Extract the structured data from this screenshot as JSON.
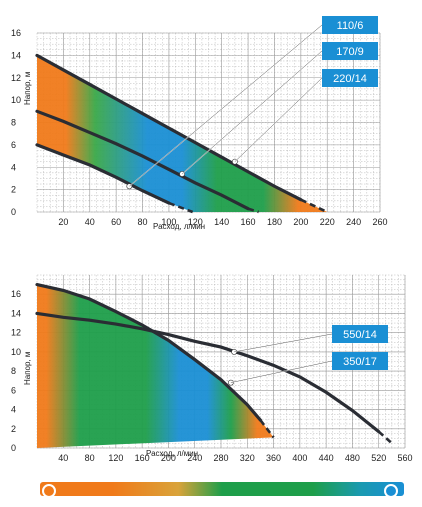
{
  "chart_data": [
    {
      "type": "line",
      "xlabel": "Расход, л/мин",
      "ylabel": "Напор, м",
      "xlim": [
        0,
        260
      ],
      "ylim": [
        0,
        16
      ],
      "x_ticks": [
        "20",
        "40",
        "60",
        "80",
        "100",
        "120",
        "140",
        "160",
        "180",
        "200",
        "220",
        "240",
        "260"
      ],
      "y_ticks": [
        "0",
        "2",
        "4",
        "6",
        "8",
        "10",
        "12",
        "14",
        "16"
      ],
      "grid": true,
      "legend_placement": "top-right callouts",
      "series": [
        {
          "name": "110/6",
          "points": [
            [
              0,
              6.0
            ],
            [
              20,
              5.1
            ],
            [
              40,
              4.2
            ],
            [
              60,
              3.1
            ],
            [
              80,
              1.9
            ],
            [
              100,
              0.8
            ],
            [
              118,
              0.0
            ]
          ]
        },
        {
          "name": "170/9",
          "points": [
            [
              0,
              9.0
            ],
            [
              20,
              8.1
            ],
            [
              40,
              7.1
            ],
            [
              60,
              6.1
            ],
            [
              80,
              5.0
            ],
            [
              100,
              3.8
            ],
            [
              120,
              2.6
            ],
            [
              140,
              1.5
            ],
            [
              160,
              0.3
            ],
            [
              168,
              0.0
            ]
          ]
        },
        {
          "name": "220/14",
          "points": [
            [
              0,
              14.0
            ],
            [
              20,
              12.7
            ],
            [
              40,
              11.4
            ],
            [
              60,
              10.1
            ],
            [
              80,
              8.8
            ],
            [
              100,
              7.5
            ],
            [
              120,
              6.2
            ],
            [
              140,
              4.9
            ],
            [
              160,
              3.6
            ],
            [
              180,
              2.3
            ],
            [
              200,
              1.1
            ],
            [
              220,
              0.0
            ]
          ]
        }
      ],
      "markers": [
        {
          "series": "110/6",
          "x": 70,
          "y": 2.3
        },
        {
          "series": "170/9",
          "x": 110,
          "y": 3.4
        },
        {
          "series": "220/14",
          "x": 150,
          "y": 4.5
        }
      ]
    },
    {
      "type": "line",
      "xlabel": "Расход, л/мин",
      "ylabel": "Напор, м",
      "xlim": [
        0,
        560
      ],
      "ylim": [
        0,
        18
      ],
      "x_ticks": [
        "40",
        "80",
        "120",
        "160",
        "200",
        "240",
        "280",
        "320",
        "360",
        "400",
        "440",
        "480",
        "520",
        "560"
      ],
      "y_ticks": [
        "0",
        "2",
        "4",
        "6",
        "8",
        "10",
        "12",
        "14",
        "16"
      ],
      "grid": true,
      "legend_placement": "right callouts",
      "series": [
        {
          "name": "350/17",
          "points": [
            [
              0,
              17.0
            ],
            [
              40,
              16.4
            ],
            [
              80,
              15.5
            ],
            [
              120,
              14.2
            ],
            [
              160,
              12.8
            ],
            [
              200,
              11.2
            ],
            [
              240,
              9.2
            ],
            [
              280,
              7.1
            ],
            [
              320,
              4.5
            ],
            [
              340,
              2.9
            ],
            [
              360,
              1.1
            ]
          ]
        },
        {
          "name": "550/14",
          "points": [
            [
              0,
              14.0
            ],
            [
              40,
              13.6
            ],
            [
              80,
              13.3
            ],
            [
              120,
              12.9
            ],
            [
              160,
              12.4
            ],
            [
              200,
              11.8
            ],
            [
              240,
              11.1
            ],
            [
              280,
              10.5
            ],
            [
              320,
              9.6
            ],
            [
              360,
              8.6
            ],
            [
              400,
              7.4
            ],
            [
              440,
              5.8
            ],
            [
              480,
              3.9
            ],
            [
              520,
              1.7
            ],
            [
              540,
              0.5
            ]
          ]
        }
      ],
      "markers": [
        {
          "series": "550/14",
          "x": 300,
          "y": 10.0
        },
        {
          "series": "350/17",
          "x": 295,
          "y": 6.8
        }
      ]
    }
  ],
  "colors": {
    "orange": "#f07a1a",
    "green": "#1e9e4a",
    "blue": "#1a8fd4",
    "curve": "#2a2d34",
    "callout": "#1a8fd4",
    "gradient_bar": [
      "#f07a1a",
      "#f4a53a",
      "#1e9e4a",
      "#1a8fd4"
    ]
  },
  "scale_bar": {
    "left_marker": "circle",
    "right_marker": "circle"
  }
}
